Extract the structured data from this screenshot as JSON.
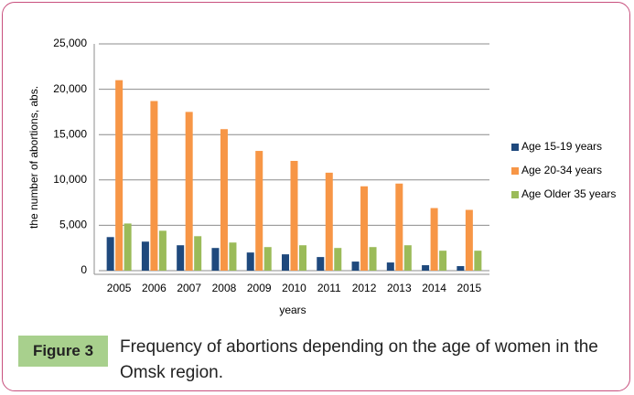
{
  "chart_data": {
    "type": "bar",
    "y_label": "the number of abortions, abs.",
    "x_label": "years",
    "categories": [
      "2005",
      "2006",
      "2007",
      "2008",
      "2009",
      "2010",
      "2011",
      "2012",
      "2013",
      "2014",
      "2015"
    ],
    "series": [
      {
        "name": "Age 15-19 years",
        "color": "#1f497d",
        "values": [
          3700,
          3200,
          2800,
          2500,
          2000,
          1800,
          1500,
          1000,
          900,
          600,
          500
        ]
      },
      {
        "name": "Age 20-34 years",
        "color": "#f79646",
        "values": [
          21000,
          18700,
          17500,
          15600,
          13200,
          12100,
          10800,
          9300,
          9600,
          6900,
          6700
        ]
      },
      {
        "name": "Age Older 35 years",
        "color": "#9bbb59",
        "values": [
          5200,
          4400,
          3800,
          3100,
          2600,
          2800,
          2500,
          2600,
          2800,
          2200,
          2200
        ]
      }
    ],
    "ylim": [
      0,
      25000
    ],
    "yticks": [
      0,
      {
        "value": 5000,
        "label": "5,000"
      },
      {
        "value": 10000,
        "label": "10,000"
      },
      {
        "value": 15000,
        "label": "15,000"
      },
      {
        "value": 20000,
        "label": "20,000"
      },
      {
        "value": 25000,
        "label": "25,000"
      }
    ],
    "grid": true,
    "legend": "right"
  },
  "caption": {
    "label": "Figure 3",
    "text": "Frequency of abortions depending on the age of women in the Omsk region."
  }
}
